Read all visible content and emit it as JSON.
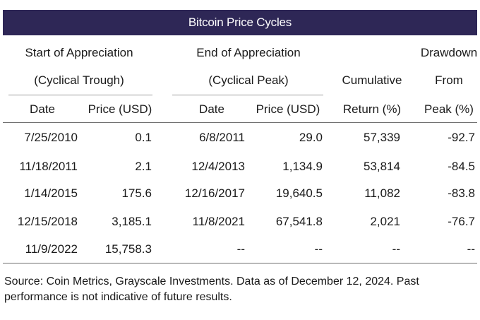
{
  "chart_data": {
    "type": "table",
    "title": "Bitcoin Price Cycles",
    "group_headers": {
      "start": [
        "Start of Appreciation",
        "(Cyclical Trough)"
      ],
      "end": [
        "End of Appreciation",
        "(Cyclical Peak)"
      ],
      "cumulative": [
        "Cumulative",
        "Return (%)"
      ],
      "drawdown": [
        "Drawdown",
        "From",
        "Peak (%)"
      ]
    },
    "columns": [
      "Date",
      "Price (USD)",
      "Date",
      "Price (USD)"
    ],
    "rows": [
      [
        "7/25/2010",
        "0.1",
        "6/8/2011",
        "29.0",
        "57,339",
        "-92.7"
      ],
      [
        "11/18/2011",
        "2.1",
        "12/4/2013",
        "1,134.9",
        "53,814",
        "-84.5"
      ],
      [
        "1/14/2015",
        "175.6",
        "12/16/2017",
        "19,640.5",
        "11,082",
        "-83.8"
      ],
      [
        "12/15/2018",
        "3,185.1",
        "11/8/2021",
        "67,541.8",
        "2,021",
        "-76.7"
      ],
      [
        "11/9/2022",
        "15,758.3",
        "--",
        "--",
        "--",
        "--"
      ]
    ],
    "source": "Source: Coin Metrics, Grayscale Investments. Data as of December 12, 2024. Past performance is not indicative of future results."
  },
  "colors": {
    "title_bg": "#2e2756",
    "title_text": "#ffffff"
  }
}
